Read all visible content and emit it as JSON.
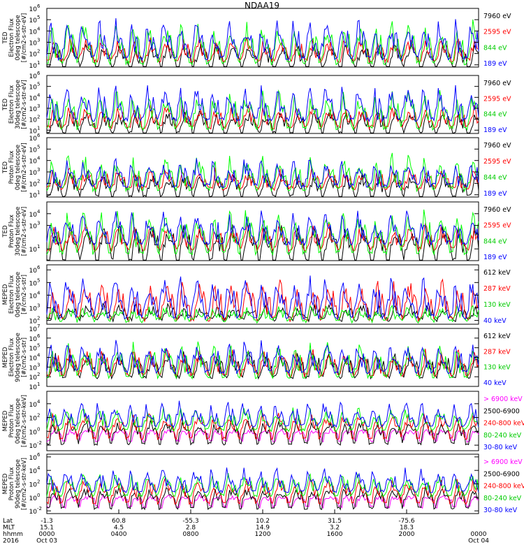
{
  "title": "NDAA19",
  "chart_data": [
    {
      "type": "line",
      "instrument": "TED",
      "quantity": "Electron Flux",
      "telescope": "0deg telescope",
      "units": "[#/cm2-s-str-eV]",
      "ylabel_lines": [
        "TED",
        "Electron Flux",
        "0deg telescope",
        "[#/cm2-s-str-eV]"
      ],
      "y_scale": "log",
      "yticks": [
        [
          "10",
          "1"
        ],
        [
          "10",
          "2"
        ],
        [
          "10",
          "3"
        ],
        [
          "10",
          "4"
        ],
        [
          "10",
          "5"
        ],
        [
          "10",
          "6"
        ]
      ],
      "ylim_exp": [
        0.8,
        6
      ],
      "baseline_exp": 1.3,
      "series": [
        {
          "name": "7960 eV",
          "color": "#000000",
          "lo": 0.7,
          "hi": 2.6
        },
        {
          "name": "2595 eV",
          "color": "#ff0000",
          "lo": 1.4,
          "hi": 3.4
        },
        {
          "name": "844 eV",
          "color": "#00ff00",
          "lo": 1.2,
          "hi": 4.8
        },
        {
          "name": "189 eV",
          "color": "#0000ff",
          "lo": 1.6,
          "hi": 5.2
        }
      ]
    },
    {
      "type": "line",
      "instrument": "TED",
      "quantity": "Electron Flux",
      "telescope": "30deg telescope",
      "units": "[#/cm2-s-str-eV]",
      "ylabel_lines": [
        "TED",
        "Electron Flux",
        "30deg telescope",
        "[#/cm2-s-str-eV]"
      ],
      "y_scale": "log",
      "yticks": [
        [
          "10",
          "1"
        ],
        [
          "10",
          "2"
        ],
        [
          "10",
          "3"
        ],
        [
          "10",
          "4"
        ],
        [
          "10",
          "5"
        ],
        [
          "10",
          "6"
        ]
      ],
      "ylim_exp": [
        0.7,
        6
      ],
      "baseline_exp": 1.3,
      "series": [
        {
          "name": "7960 eV",
          "color": "#000000",
          "lo": 0.7,
          "hi": 2.4
        },
        {
          "name": "2595 eV",
          "color": "#ff0000",
          "lo": 1.3,
          "hi": 3.2
        },
        {
          "name": "844 eV",
          "color": "#00ff00",
          "lo": 1.2,
          "hi": 4.6
        },
        {
          "name": "189 eV",
          "color": "#0000ff",
          "lo": 2.0,
          "hi": 5.3
        }
      ]
    },
    {
      "type": "line",
      "instrument": "TED",
      "quantity": "Proton Flux",
      "telescope": "0deg telescope",
      "units": "[#/cm2-s-str-eV]",
      "ylabel_lines": [
        "TED",
        "Proton Flux",
        "0deg telescope",
        "[#/cm2-s-str-eV]"
      ],
      "y_scale": "log",
      "yticks": [
        [
          "10",
          "1"
        ],
        [
          "10",
          "2"
        ],
        [
          "10",
          "3"
        ],
        [
          "10",
          "4"
        ],
        [
          "10",
          "5"
        ],
        [
          "10",
          "6"
        ]
      ],
      "ylim_exp": [
        0.8,
        6
      ],
      "baseline_exp": 1.3,
      "series": [
        {
          "name": "7960 eV",
          "color": "#000000",
          "lo": 0.8,
          "hi": 2.6
        },
        {
          "name": "2595 eV",
          "color": "#ff0000",
          "lo": 1.6,
          "hi": 3.4
        },
        {
          "name": "844 eV",
          "color": "#00ff00",
          "lo": 1.5,
          "hi": 4.6
        },
        {
          "name": "189 eV",
          "color": "#0000ff",
          "lo": 1.8,
          "hi": 4.3
        }
      ]
    },
    {
      "type": "line",
      "instrument": "TED",
      "quantity": "Proton Flux",
      "telescope": "30deg telescope",
      "units": "[#/cm2-s-str-eV]",
      "ylabel_lines": [
        "TED",
        "Proton Flux",
        "30deg telescope",
        "[#/cm2-s-str-eV]"
      ],
      "y_scale": "log",
      "yticks": [
        [
          "10",
          "1"
        ],
        [
          "10",
          "3"
        ],
        [
          "10",
          "4"
        ]
      ],
      "ylim_exp": [
        0,
        5
      ],
      "baseline_exp": 1.0,
      "series": [
        {
          "name": "7960 eV",
          "color": "#000000",
          "lo": 0.0,
          "hi": 2.5
        },
        {
          "name": "2595 eV",
          "color": "#ff0000",
          "lo": 1.0,
          "hi": 3.0
        },
        {
          "name": "844 eV",
          "color": "#00ff00",
          "lo": 0.7,
          "hi": 4.2
        },
        {
          "name": "189 eV",
          "color": "#0000ff",
          "lo": 1.5,
          "hi": 4.4
        }
      ]
    },
    {
      "type": "line",
      "instrument": "MEPED",
      "quantity": "Electron Flux",
      "telescope": "0deg telescope",
      "units": "[#/cm2-s-str]",
      "ylabel_lines": [
        "MEPED",
        "Electron Flux",
        "0deg telescope",
        "[#/cm2-s-str]"
      ],
      "y_scale": "log",
      "yticks": [
        [
          "10",
          "2"
        ],
        [
          "10",
          "3"
        ],
        [
          "10",
          "4"
        ],
        [
          "10",
          "5"
        ],
        [
          "10",
          "6"
        ]
      ],
      "ylim_exp": [
        1.7,
        6.4
      ],
      "baseline_exp": 2.1,
      "series": [
        {
          "name": "612 keV",
          "color": "#000000",
          "lo": 2.1,
          "hi": 3.2
        },
        {
          "name": "287 keV",
          "color": "#ff0000",
          "lo": 2.1,
          "hi": 5.2
        },
        {
          "name": "130 keV",
          "color": "#00ff00",
          "lo": 2.0,
          "hi": 3.0
        },
        {
          "name": "40 keV",
          "color": "#0000ff",
          "lo": 2.3,
          "hi": 5.6
        }
      ]
    },
    {
      "type": "line",
      "instrument": "MEPED",
      "quantity": "Electron Flux",
      "telescope": "90deg telescope",
      "units": "[#/cm2-s-str]",
      "ylabel_lines": [
        "MEPED",
        "Electron Flux",
        "90deg telescope",
        "[#/cm2-s-str]"
      ],
      "y_scale": "log",
      "yticks": [
        [
          "10",
          "1"
        ],
        [
          "10",
          "2"
        ],
        [
          "10",
          "3"
        ],
        [
          "10",
          "4"
        ],
        [
          "10",
          "5"
        ],
        [
          "10",
          "6"
        ],
        [
          "10",
          "7"
        ]
      ],
      "ylim_exp": [
        1.0,
        7.0
      ],
      "baseline_exp": 2.0,
      "series": [
        {
          "name": "612 keV",
          "color": "#000000",
          "lo": 2.0,
          "hi": 4.6
        },
        {
          "name": "287 keV",
          "color": "#ff0000",
          "lo": 2.2,
          "hi": 5.0
        },
        {
          "name": "130 keV",
          "color": "#00ff00",
          "lo": 2.0,
          "hi": 5.6
        },
        {
          "name": "40 keV",
          "color": "#0000ff",
          "lo": 2.5,
          "hi": 6.0
        }
      ]
    },
    {
      "type": "line",
      "instrument": "MEPED",
      "quantity": "Proton Flux",
      "telescope": "0deg telescope",
      "units": "[#/cm2-s-str-keV]",
      "ylabel_lines": [
        "MEPED",
        "Proton Flux",
        "0deg telescope",
        "[#/cm2-s-str-keV]"
      ],
      "y_scale": "log",
      "yticks": [
        [
          "10",
          "-2"
        ],
        [
          "10",
          "0"
        ],
        [
          "10",
          "2"
        ],
        [
          "10",
          "4"
        ]
      ],
      "ylim_exp": [
        -2.8,
        5.8
      ],
      "baseline_exp": 0.2,
      "series": [
        {
          "name": "> 6900 keV",
          "color": "#ff00ff",
          "lo": -1.4,
          "hi": -0.5
        },
        {
          "name": "2500-6900",
          "color": "#000000",
          "lo": -1.8,
          "hi": 0.5
        },
        {
          "name": "240-800 keV",
          "color": "#ff0000",
          "lo": -1.0,
          "hi": 2.0
        },
        {
          "name": "80-240 keV",
          "color": "#00ff00",
          "lo": 0.2,
          "hi": 3.5
        },
        {
          "name": "30-80 keV",
          "color": "#0000ff",
          "lo": 0.8,
          "hi": 4.6
        }
      ]
    },
    {
      "type": "line",
      "instrument": "MEPED",
      "quantity": "Proton Flux",
      "telescope": "90deg telescope",
      "units": "[#/cm2-s-str-keV]",
      "ylabel_lines": [
        "MEPED",
        "Proton Flux",
        "90deg telescope",
        "[#/cm2-s-str-keV]"
      ],
      "y_scale": "log",
      "yticks": [
        [
          "10",
          "-2"
        ],
        [
          "10",
          "0"
        ],
        [
          "10",
          "2"
        ],
        [
          "10",
          "4"
        ],
        [
          "10",
          "6"
        ]
      ],
      "ylim_exp": [
        -2.4,
        6.4
      ],
      "baseline_exp": 0.2,
      "series": [
        {
          "name": "> 6900 keV",
          "color": "#ff00ff",
          "lo": -1.4,
          "hi": -0.5
        },
        {
          "name": "2500-6900",
          "color": "#000000",
          "lo": -1.6,
          "hi": 0.6
        },
        {
          "name": "240-800 keV",
          "color": "#ff0000",
          "lo": -0.8,
          "hi": 2.2
        },
        {
          "name": "80-240 keV",
          "color": "#00ff00",
          "lo": 0.3,
          "hi": 3.6
        },
        {
          "name": "30-80 keV",
          "color": "#0000ff",
          "lo": 0.9,
          "hi": 4.8
        }
      ]
    }
  ],
  "xaxis": {
    "row_labels": [
      "Lat",
      "MLT",
      "hhmm",
      "2016"
    ],
    "ticks": [
      {
        "lat": "-1.3",
        "mlt": "15.1",
        "hhmm": "0000",
        "date": "Oct 03",
        "frac": 0.0
      },
      {
        "lat": "60.8",
        "mlt": "4.5",
        "hhmm": "0400",
        "date": "",
        "frac": 0.1667
      },
      {
        "lat": "-55.3",
        "mlt": "2.8",
        "hhmm": "0800",
        "date": "",
        "frac": 0.3333
      },
      {
        "lat": "10.2",
        "mlt": "14.9",
        "hhmm": "1200",
        "date": "",
        "frac": 0.5
      },
      {
        "lat": "31.5",
        "mlt": "3.2",
        "hhmm": "1600",
        "date": "",
        "frac": 0.6667
      },
      {
        "lat": "-75.6",
        "mlt": "18.3",
        "hhmm": "2000",
        "date": "",
        "frac": 0.8333
      },
      {
        "lat": "",
        "mlt": "",
        "hhmm": "0000",
        "date": "Oct 04",
        "frac": 1.0
      }
    ]
  }
}
